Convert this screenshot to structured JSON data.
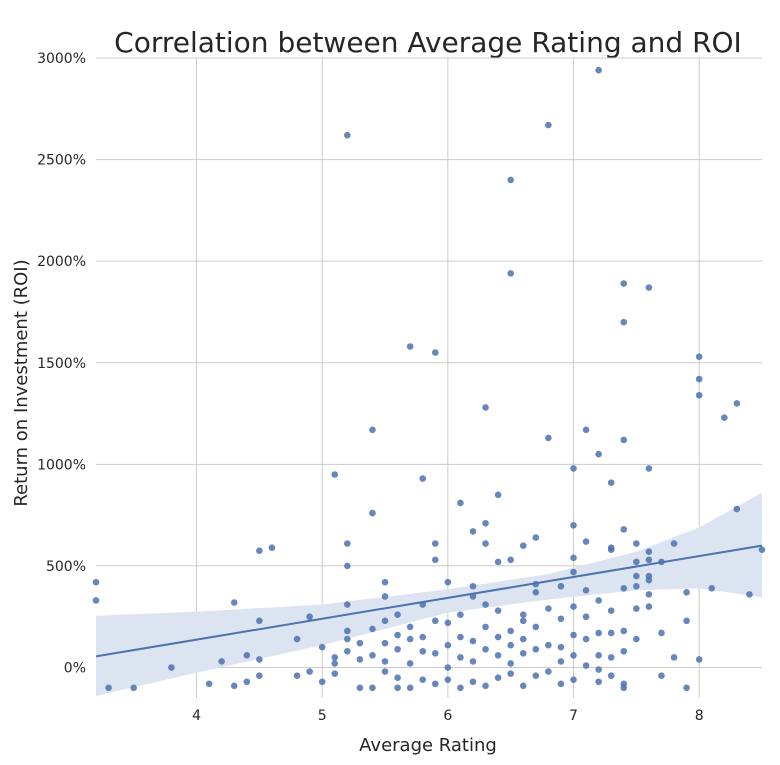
{
  "chart_data": {
    "type": "scatter",
    "title": "Correlation between Average Rating and ROI",
    "xlabel": "Average Rating",
    "ylabel": "Return on Investment (ROI)",
    "xlim": [
      3.2,
      8.5
    ],
    "ylim": [
      -150,
      3000
    ],
    "x_ticks": [
      4,
      5,
      6,
      7,
      8
    ],
    "y_ticks": [
      0,
      500,
      1000,
      1500,
      2000,
      2500,
      3000
    ],
    "x_tick_labels": [
      "4",
      "5",
      "6",
      "7",
      "8"
    ],
    "y_tick_labels": [
      "0%",
      "500%",
      "1000%",
      "1500%",
      "2000%",
      "2500%",
      "3000%"
    ],
    "grid": true,
    "colors": {
      "points": "#4c72b0",
      "line": "#4c72b0",
      "band": "#dde4f1",
      "grid": "#cccccc"
    },
    "regression": {
      "x": [
        3.2,
        8.5
      ],
      "y": [
        55,
        600
      ]
    },
    "confidence_band": {
      "x": [
        3.2,
        4.0,
        5.0,
        6.0,
        6.8,
        7.5,
        8.0,
        8.5
      ],
      "upper": [
        255,
        275,
        310,
        385,
        460,
        570,
        690,
        860
      ],
      "lower": [
        -140,
        -25,
        110,
        270,
        335,
        380,
        390,
        345
      ]
    },
    "points": [
      {
        "x": 3.2,
        "y": 420
      },
      {
        "x": 3.2,
        "y": 330
      },
      {
        "x": 3.3,
        "y": -100
      },
      {
        "x": 3.5,
        "y": -100
      },
      {
        "x": 3.8,
        "y": 0
      },
      {
        "x": 4.1,
        "y": -80
      },
      {
        "x": 4.2,
        "y": 30
      },
      {
        "x": 4.3,
        "y": -90
      },
      {
        "x": 4.3,
        "y": 320
      },
      {
        "x": 4.4,
        "y": 60
      },
      {
        "x": 4.4,
        "y": -70
      },
      {
        "x": 4.5,
        "y": 575
      },
      {
        "x": 4.5,
        "y": 230
      },
      {
        "x": 4.5,
        "y": 40
      },
      {
        "x": 4.5,
        "y": -40
      },
      {
        "x": 4.6,
        "y": 590
      },
      {
        "x": 4.8,
        "y": 140
      },
      {
        "x": 4.8,
        "y": -40
      },
      {
        "x": 4.9,
        "y": 250
      },
      {
        "x": 4.9,
        "y": -20
      },
      {
        "x": 5.0,
        "y": -70
      },
      {
        "x": 5.0,
        "y": 100
      },
      {
        "x": 5.1,
        "y": 950
      },
      {
        "x": 5.1,
        "y": 50
      },
      {
        "x": 5.1,
        "y": 20
      },
      {
        "x": 5.1,
        "y": -30
      },
      {
        "x": 5.2,
        "y": 2620
      },
      {
        "x": 5.2,
        "y": 610
      },
      {
        "x": 5.2,
        "y": 500
      },
      {
        "x": 5.2,
        "y": 310
      },
      {
        "x": 5.2,
        "y": 180
      },
      {
        "x": 5.2,
        "y": 140
      },
      {
        "x": 5.2,
        "y": 80
      },
      {
        "x": 5.3,
        "y": 120
      },
      {
        "x": 5.3,
        "y": 40
      },
      {
        "x": 5.3,
        "y": -100
      },
      {
        "x": 5.4,
        "y": 1170
      },
      {
        "x": 5.4,
        "y": 760
      },
      {
        "x": 5.4,
        "y": 190
      },
      {
        "x": 5.4,
        "y": 60
      },
      {
        "x": 5.4,
        "y": -100
      },
      {
        "x": 5.5,
        "y": 420
      },
      {
        "x": 5.5,
        "y": 350
      },
      {
        "x": 5.5,
        "y": 230
      },
      {
        "x": 5.5,
        "y": 120
      },
      {
        "x": 5.5,
        "y": 30
      },
      {
        "x": 5.5,
        "y": -20
      },
      {
        "x": 5.6,
        "y": 260
      },
      {
        "x": 5.6,
        "y": 160
      },
      {
        "x": 5.6,
        "y": 90
      },
      {
        "x": 5.6,
        "y": -50
      },
      {
        "x": 5.6,
        "y": -100
      },
      {
        "x": 5.7,
        "y": 1580
      },
      {
        "x": 5.7,
        "y": 200
      },
      {
        "x": 5.7,
        "y": 140
      },
      {
        "x": 5.7,
        "y": 20
      },
      {
        "x": 5.7,
        "y": -100
      },
      {
        "x": 5.8,
        "y": 930
      },
      {
        "x": 5.8,
        "y": 310
      },
      {
        "x": 5.8,
        "y": 150
      },
      {
        "x": 5.8,
        "y": 80
      },
      {
        "x": 5.8,
        "y": -60
      },
      {
        "x": 5.9,
        "y": 1550
      },
      {
        "x": 5.9,
        "y": 610
      },
      {
        "x": 5.9,
        "y": 530
      },
      {
        "x": 5.9,
        "y": 230
      },
      {
        "x": 5.9,
        "y": 70
      },
      {
        "x": 5.9,
        "y": -80
      },
      {
        "x": 6.0,
        "y": 420
      },
      {
        "x": 6.0,
        "y": 220
      },
      {
        "x": 6.0,
        "y": 110
      },
      {
        "x": 6.0,
        "y": 0
      },
      {
        "x": 6.0,
        "y": -60
      },
      {
        "x": 6.1,
        "y": 810
      },
      {
        "x": 6.1,
        "y": 260
      },
      {
        "x": 6.1,
        "y": 150
      },
      {
        "x": 6.1,
        "y": 50
      },
      {
        "x": 6.1,
        "y": -100
      },
      {
        "x": 6.2,
        "y": 670
      },
      {
        "x": 6.2,
        "y": 400
      },
      {
        "x": 6.2,
        "y": 350
      },
      {
        "x": 6.2,
        "y": 130
      },
      {
        "x": 6.2,
        "y": 30
      },
      {
        "x": 6.2,
        "y": -70
      },
      {
        "x": 6.3,
        "y": 1280
      },
      {
        "x": 6.3,
        "y": 710
      },
      {
        "x": 6.3,
        "y": 610
      },
      {
        "x": 6.3,
        "y": 310
      },
      {
        "x": 6.3,
        "y": 200
      },
      {
        "x": 6.3,
        "y": 90
      },
      {
        "x": 6.3,
        "y": -90
      },
      {
        "x": 6.4,
        "y": 850
      },
      {
        "x": 6.4,
        "y": 520
      },
      {
        "x": 6.4,
        "y": 280
      },
      {
        "x": 6.4,
        "y": 150
      },
      {
        "x": 6.4,
        "y": 60
      },
      {
        "x": 6.4,
        "y": -50
      },
      {
        "x": 6.5,
        "y": 2400
      },
      {
        "x": 6.5,
        "y": 1940
      },
      {
        "x": 6.5,
        "y": 530
      },
      {
        "x": 6.5,
        "y": 180
      },
      {
        "x": 6.5,
        "y": 110
      },
      {
        "x": 6.5,
        "y": 20
      },
      {
        "x": 6.5,
        "y": -30
      },
      {
        "x": 6.6,
        "y": 600
      },
      {
        "x": 6.6,
        "y": 260
      },
      {
        "x": 6.6,
        "y": 230
      },
      {
        "x": 6.6,
        "y": 140
      },
      {
        "x": 6.6,
        "y": 70
      },
      {
        "x": 6.6,
        "y": -90
      },
      {
        "x": 6.7,
        "y": 640
      },
      {
        "x": 6.7,
        "y": 410
      },
      {
        "x": 6.7,
        "y": 370
      },
      {
        "x": 6.7,
        "y": 200
      },
      {
        "x": 6.7,
        "y": 90
      },
      {
        "x": 6.7,
        "y": -40
      },
      {
        "x": 6.8,
        "y": 2670
      },
      {
        "x": 6.8,
        "y": 1130
      },
      {
        "x": 6.8,
        "y": 290
      },
      {
        "x": 6.8,
        "y": 110
      },
      {
        "x": 6.8,
        "y": -20
      },
      {
        "x": 6.9,
        "y": 400
      },
      {
        "x": 6.9,
        "y": 240
      },
      {
        "x": 6.9,
        "y": 100
      },
      {
        "x": 6.9,
        "y": 30
      },
      {
        "x": 6.9,
        "y": -80
      },
      {
        "x": 7.0,
        "y": 980
      },
      {
        "x": 7.0,
        "y": 700
      },
      {
        "x": 7.0,
        "y": 540
      },
      {
        "x": 7.0,
        "y": 470
      },
      {
        "x": 7.0,
        "y": 300
      },
      {
        "x": 7.0,
        "y": 160
      },
      {
        "x": 7.0,
        "y": 60
      },
      {
        "x": 7.0,
        "y": -60
      },
      {
        "x": 7.1,
        "y": 1170
      },
      {
        "x": 7.1,
        "y": 620
      },
      {
        "x": 7.1,
        "y": 380
      },
      {
        "x": 7.1,
        "y": 250
      },
      {
        "x": 7.1,
        "y": 140
      },
      {
        "x": 7.1,
        "y": 10
      },
      {
        "x": 7.2,
        "y": 2940
      },
      {
        "x": 7.2,
        "y": 1050
      },
      {
        "x": 7.2,
        "y": 330
      },
      {
        "x": 7.2,
        "y": 170
      },
      {
        "x": 7.2,
        "y": 60
      },
      {
        "x": 7.2,
        "y": -10
      },
      {
        "x": 7.2,
        "y": -70
      },
      {
        "x": 7.3,
        "y": 910
      },
      {
        "x": 7.3,
        "y": 590
      },
      {
        "x": 7.3,
        "y": 580
      },
      {
        "x": 7.3,
        "y": 280
      },
      {
        "x": 7.3,
        "y": 170
      },
      {
        "x": 7.3,
        "y": 50
      },
      {
        "x": 7.3,
        "y": -40
      },
      {
        "x": 7.4,
        "y": 1890
      },
      {
        "x": 7.4,
        "y": 1700
      },
      {
        "x": 7.4,
        "y": 1120
      },
      {
        "x": 7.4,
        "y": 680
      },
      {
        "x": 7.4,
        "y": 390
      },
      {
        "x": 7.4,
        "y": 180
      },
      {
        "x": 7.4,
        "y": 80
      },
      {
        "x": 7.4,
        "y": -80
      },
      {
        "x": 7.4,
        "y": -100
      },
      {
        "x": 7.5,
        "y": 610
      },
      {
        "x": 7.5,
        "y": 520
      },
      {
        "x": 7.5,
        "y": 450
      },
      {
        "x": 7.5,
        "y": 400
      },
      {
        "x": 7.5,
        "y": 290
      },
      {
        "x": 7.5,
        "y": 140
      },
      {
        "x": 7.6,
        "y": 1870
      },
      {
        "x": 7.6,
        "y": 980
      },
      {
        "x": 7.6,
        "y": 570
      },
      {
        "x": 7.6,
        "y": 530
      },
      {
        "x": 7.6,
        "y": 450
      },
      {
        "x": 7.6,
        "y": 430
      },
      {
        "x": 7.6,
        "y": 360
      },
      {
        "x": 7.6,
        "y": 300
      },
      {
        "x": 7.7,
        "y": 520
      },
      {
        "x": 7.7,
        "y": 170
      },
      {
        "x": 7.7,
        "y": -40
      },
      {
        "x": 7.8,
        "y": 610
      },
      {
        "x": 7.8,
        "y": 50
      },
      {
        "x": 7.9,
        "y": 370
      },
      {
        "x": 7.9,
        "y": 230
      },
      {
        "x": 7.9,
        "y": -100
      },
      {
        "x": 8.0,
        "y": 1530
      },
      {
        "x": 8.0,
        "y": 1420
      },
      {
        "x": 8.0,
        "y": 1340
      },
      {
        "x": 8.0,
        "y": 40
      },
      {
        "x": 8.1,
        "y": 390
      },
      {
        "x": 8.2,
        "y": 1230
      },
      {
        "x": 8.3,
        "y": 1300
      },
      {
        "x": 8.3,
        "y": 780
      },
      {
        "x": 8.4,
        "y": 360
      },
      {
        "x": 8.5,
        "y": 580
      }
    ]
  }
}
